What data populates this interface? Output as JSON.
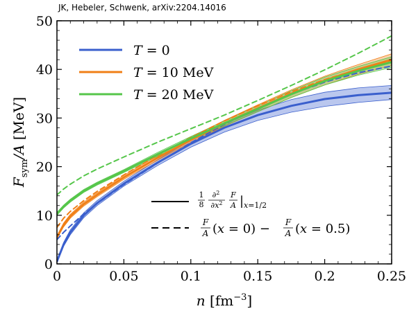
{
  "credit": "JK, Hebeler, Schwenk, arXiv:2204.14016",
  "chart_data": {
    "type": "line",
    "xlabel": "n [fm⁻³]",
    "ylabel": "F_sym/A [MeV]",
    "xlim": [
      0,
      0.25
    ],
    "ylim": [
      0,
      50
    ],
    "xticks": [
      "0",
      "0.05",
      "0.1",
      "0.15",
      "0.2",
      "0.25"
    ],
    "yticks": [
      "0",
      "10",
      "20",
      "30",
      "40",
      "50"
    ],
    "grid": false,
    "legend_position": "top-left",
    "legend_labels": [
      "T = 0",
      "T = 10 MeV",
      "T = 20 MeV"
    ],
    "style_legend_position": "bottom-right",
    "style_legend_labels": [
      "1/8 ∂²/∂x² F/A |x=1/2",
      "F/A(x = 0) − F/A(x = 0.5)"
    ],
    "colors": {
      "T0": "#3a5fcd",
      "T10": "#f07f16",
      "T20": "#55c64a"
    },
    "x": [
      0.0,
      0.005,
      0.01,
      0.02,
      0.03,
      0.05,
      0.075,
      0.1,
      0.125,
      0.15,
      0.175,
      0.2,
      0.225,
      0.25
    ],
    "series": [
      {
        "name": "T = 0",
        "style": "solid",
        "color": "#3a5fcd",
        "values": [
          0.5,
          4.0,
          6.5,
          10.0,
          12.5,
          16.5,
          20.8,
          24.7,
          28.0,
          30.6,
          32.5,
          33.9,
          34.7,
          35.2
        ],
        "band_lower": [
          0.3,
          3.6,
          6.0,
          9.5,
          12.0,
          16.0,
          20.2,
          24.0,
          27.1,
          29.5,
          31.2,
          32.4,
          33.2,
          33.8
        ],
        "band_upper": [
          0.7,
          4.4,
          7.0,
          10.5,
          13.0,
          17.0,
          21.4,
          25.4,
          28.8,
          31.6,
          33.8,
          35.3,
          36.2,
          36.7
        ]
      },
      {
        "name": "T = 10 MeV",
        "style": "solid",
        "color": "#f07f16",
        "values": [
          5.5,
          8.0,
          9.8,
          12.3,
          14.2,
          17.8,
          21.8,
          25.5,
          28.9,
          32.0,
          35.0,
          37.7,
          40.0,
          42.0
        ],
        "band_lower": [
          5.2,
          7.6,
          9.4,
          11.9,
          13.8,
          17.4,
          21.3,
          25.0,
          28.3,
          31.3,
          34.2,
          36.8,
          39.0,
          40.8
        ],
        "band_upper": [
          5.8,
          8.4,
          10.2,
          12.7,
          14.6,
          18.2,
          22.3,
          26.0,
          29.5,
          32.7,
          35.8,
          38.6,
          41.0,
          43.2
        ]
      },
      {
        "name": "T = 20 MeV",
        "style": "solid",
        "color": "#55c64a",
        "values": [
          10.3,
          11.8,
          13.0,
          15.0,
          16.5,
          19.1,
          22.5,
          25.8,
          28.9,
          31.9,
          34.9,
          37.6,
          39.7,
          41.5
        ],
        "band_lower": [
          10.0,
          11.5,
          12.7,
          14.7,
          16.2,
          18.8,
          22.1,
          25.4,
          28.4,
          31.3,
          34.2,
          36.8,
          38.8,
          40.4
        ],
        "band_upper": [
          10.6,
          12.1,
          13.3,
          15.3,
          16.8,
          19.4,
          22.9,
          26.2,
          29.4,
          32.5,
          35.6,
          38.4,
          40.6,
          42.6
        ]
      },
      {
        "name": "T = 0",
        "style": "dashed",
        "color": "#3a5fcd",
        "values": [
          5.0,
          6.5,
          7.8,
          10.3,
          12.4,
          16.3,
          20.7,
          24.9,
          28.7,
          32.0,
          34.9,
          37.4,
          39.3,
          40.7
        ]
      },
      {
        "name": "T = 10 MeV",
        "style": "dashed",
        "color": "#f07f16",
        "values": [
          7.5,
          9.4,
          10.8,
          13.0,
          14.9,
          18.3,
          22.3,
          26.0,
          29.4,
          32.5,
          35.4,
          37.9,
          40.0,
          41.8
        ]
      },
      {
        "name": "T = 20 MeV",
        "style": "dashed",
        "color": "#55c64a",
        "values": [
          14.2,
          15.4,
          16.4,
          18.1,
          19.5,
          22.0,
          25.0,
          27.8,
          30.6,
          33.6,
          36.7,
          39.9,
          43.3,
          46.9
        ]
      }
    ]
  }
}
